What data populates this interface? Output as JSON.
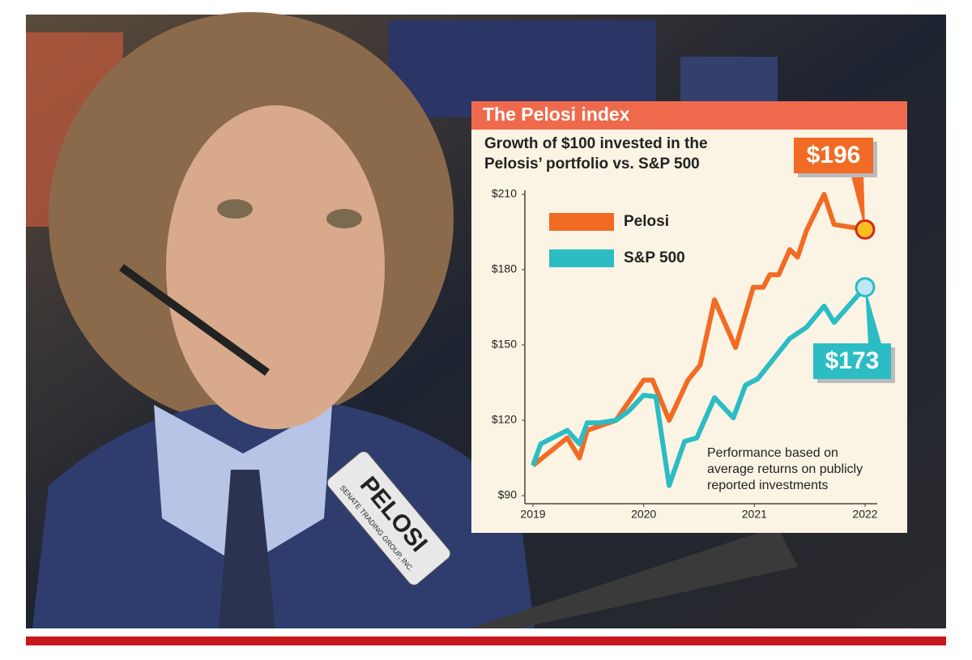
{
  "photo": {
    "badge_name": "PELOSI",
    "badge_org": "SENATE TRADING GROUP, INC."
  },
  "chart_data": {
    "type": "line",
    "title": "The Pelosi index",
    "subtitle": [
      "Growth of $100 invested in the",
      "Pelosis’ portfolio vs. S&P 500"
    ],
    "note": [
      "Performance based on",
      "average returns on publicly",
      "reported investments"
    ],
    "xlim": [
      2019,
      2022
    ],
    "xticks": [
      2019,
      2020,
      2021,
      2022
    ],
    "ylim": [
      90,
      210
    ],
    "yticks": [
      {
        "value": 90,
        "label": "$90"
      },
      {
        "value": 120,
        "label": "$120"
      },
      {
        "value": 150,
        "label": "$150"
      },
      {
        "value": 180,
        "label": "$180"
      },
      {
        "value": 210,
        "label": "$210"
      }
    ],
    "grid": false,
    "series": [
      {
        "name": "Pelosi",
        "color": "#f26b24",
        "end_label": "$196",
        "x": [
          2019.0,
          2019.31,
          2019.42,
          2019.49,
          2019.75,
          2019.82,
          2020.0,
          2020.08,
          2020.23,
          2020.4,
          2020.51,
          2020.64,
          2020.83,
          2020.99,
          2021.08,
          2021.14,
          2021.22,
          2021.32,
          2021.39,
          2021.47,
          2021.63,
          2021.72,
          2022.0
        ],
        "values": [
          102,
          113,
          105,
          116,
          120,
          124.5,
          136,
          136,
          120,
          136,
          142,
          168,
          149,
          173,
          173,
          178,
          178,
          188,
          185,
          195.5,
          210,
          198,
          196
        ]
      },
      {
        "name": "S&P 500",
        "color": "#2bbcc4",
        "end_label": "$173",
        "x": [
          2019.0,
          2019.07,
          2019.31,
          2019.42,
          2019.49,
          2019.6,
          2019.75,
          2019.86,
          2020.0,
          2020.11,
          2020.23,
          2020.37,
          2020.48,
          2020.64,
          2020.81,
          2020.92,
          2021.03,
          2021.32,
          2021.47,
          2021.63,
          2021.72,
          2022.0
        ],
        "values": [
          102,
          110.6,
          116,
          110.6,
          119,
          119,
          120,
          123.5,
          130,
          129.4,
          94,
          111.6,
          113,
          129,
          121,
          134,
          136.5,
          152.6,
          157,
          165.5,
          159,
          173
        ]
      }
    ]
  }
}
